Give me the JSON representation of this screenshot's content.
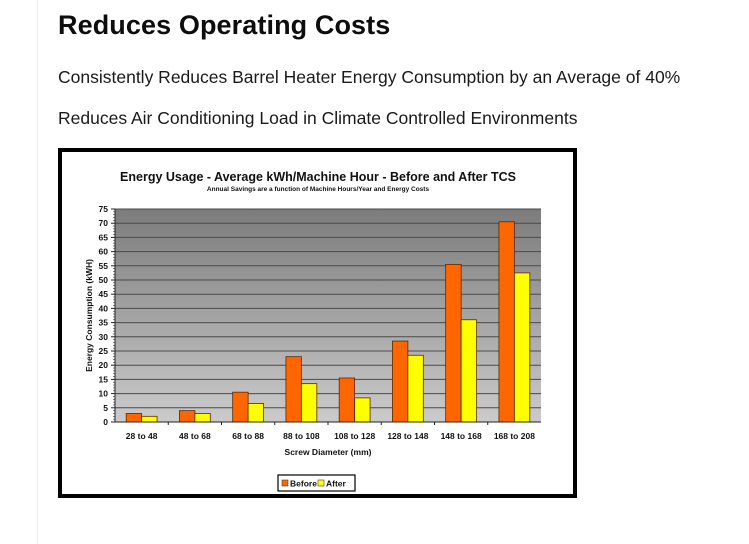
{
  "page": {
    "heading": "Reduces Operating Costs",
    "paragraphs": [
      "Consistently Reduces Barrel Heater Energy Consumption by an Average of 40%",
      "Reduces Air Conditioning Load in Climate Controlled Environments"
    ]
  },
  "chart_data": {
    "type": "bar",
    "title": "Energy Usage - Average kWh/Machine Hour - Before and After TCS",
    "subtitle": "Annual Savings are a function of Machine Hours/Year and Energy Costs",
    "xlabel": "Screw Diameter (mm)",
    "ylabel": "Energy Consumption (kWH)",
    "ylim": [
      0,
      75
    ],
    "yticks": [
      0,
      5,
      10,
      15,
      20,
      25,
      30,
      35,
      40,
      45,
      50,
      55,
      60,
      65,
      70,
      75
    ],
    "grid": true,
    "legend_position": "bottom-center",
    "categories": [
      "28 to 48",
      "48 to 68",
      "68 to 88",
      "88 to 108",
      "108 to 128",
      "128 to 148",
      "148 to 168",
      "168 to 208"
    ],
    "series": [
      {
        "name": "Before",
        "color": "#ff6600",
        "values": [
          3,
          4,
          10.5,
          23,
          15.5,
          28.5,
          55.5,
          70.5
        ]
      },
      {
        "name": "After",
        "color": "#ffff00",
        "values": [
          2,
          3,
          6.5,
          13.5,
          8.5,
          23.5,
          36,
          52.5
        ]
      }
    ]
  }
}
